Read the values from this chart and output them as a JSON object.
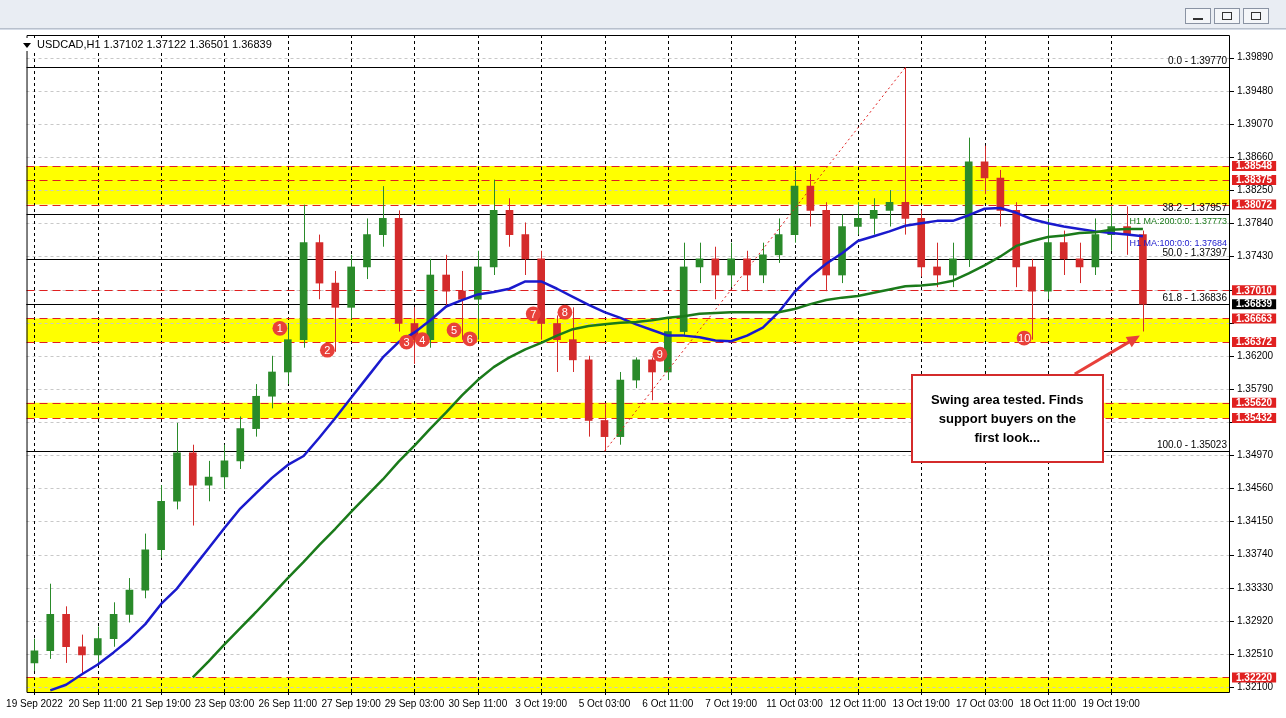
{
  "chart_data": {
    "type": "candlestick",
    "title": "USDCAD,H1  1.37102 1.37122 1.36501 1.36839",
    "categories": [
      "19 Sep 2022",
      null,
      null,
      null,
      "20 Sep 11:00",
      null,
      null,
      null,
      "21 Sep 19:00",
      null,
      null,
      null,
      "23 Sep 03:00",
      null,
      null,
      null,
      "26 Sep 11:00",
      null,
      null,
      null,
      "27 Sep 19:00",
      null,
      null,
      null,
      "29 Sep 03:00",
      null,
      null,
      null,
      "30 Sep 11:00",
      null,
      null,
      null,
      "3 Oct 19:00",
      null,
      null,
      null,
      "5 Oct 03:00",
      null,
      null,
      null,
      "6 Oct 11:00",
      null,
      null,
      null,
      "7 Oct 19:00",
      null,
      null,
      null,
      "11 Oct 03:00",
      null,
      null,
      null,
      "12 Oct 11:00",
      null,
      null,
      null,
      "13 Oct 19:00",
      null,
      null,
      null,
      "17 Oct 03:00",
      null,
      null,
      null,
      "18 Oct 11:00",
      null,
      null,
      null,
      "19 Oct 19:00",
      null,
      null,
      null,
      null,
      null,
      null,
      null
    ],
    "ohlc": [
      [
        1.324,
        1.327,
        1.323,
        1.3255
      ],
      [
        1.3255,
        1.3338,
        1.3245,
        1.33
      ],
      [
        1.33,
        1.331,
        1.324,
        1.326
      ],
      [
        1.326,
        1.3275,
        1.3225,
        1.325
      ],
      [
        1.325,
        1.3285,
        1.324,
        1.327
      ],
      [
        1.327,
        1.3315,
        1.326,
        1.33
      ],
      [
        1.33,
        1.3345,
        1.329,
        1.333
      ],
      [
        1.333,
        1.34,
        1.332,
        1.338
      ],
      [
        1.338,
        1.346,
        1.337,
        1.344
      ],
      [
        1.344,
        1.3537,
        1.343,
        1.35
      ],
      [
        1.35,
        1.351,
        1.341,
        1.346
      ],
      [
        1.346,
        1.349,
        1.344,
        1.347
      ],
      [
        1.347,
        1.351,
        1.3455,
        1.349
      ],
      [
        1.349,
        1.3545,
        1.348,
        1.353
      ],
      [
        1.353,
        1.3585,
        1.352,
        1.357
      ],
      [
        1.357,
        1.362,
        1.3555,
        1.36
      ],
      [
        1.36,
        1.366,
        1.3585,
        1.364
      ],
      [
        1.364,
        1.3807,
        1.363,
        1.376
      ],
      [
        1.376,
        1.377,
        1.369,
        1.371
      ],
      [
        1.371,
        1.3725,
        1.3625,
        1.368
      ],
      [
        1.368,
        1.3745,
        1.3665,
        1.373
      ],
      [
        1.373,
        1.379,
        1.3715,
        1.377
      ],
      [
        1.377,
        1.383,
        1.3755,
        1.379
      ],
      [
        1.379,
        1.38,
        1.365,
        1.366
      ],
      [
        1.366,
        1.368,
        1.361,
        1.364
      ],
      [
        1.364,
        1.374,
        1.363,
        1.372
      ],
      [
        1.372,
        1.3745,
        1.368,
        1.37
      ],
      [
        1.37,
        1.3725,
        1.364,
        1.369
      ],
      [
        1.369,
        1.375,
        1.364,
        1.373
      ],
      [
        1.373,
        1.3838,
        1.372,
        1.38
      ],
      [
        1.38,
        1.3815,
        1.3755,
        1.377
      ],
      [
        1.377,
        1.3785,
        1.372,
        1.374
      ],
      [
        1.374,
        1.375,
        1.364,
        1.366
      ],
      [
        1.366,
        1.367,
        1.36,
        1.364
      ],
      [
        1.364,
        1.368,
        1.36,
        1.3615
      ],
      [
        1.3615,
        1.362,
        1.352,
        1.354
      ],
      [
        1.354,
        1.356,
        1.3502,
        1.352
      ],
      [
        1.352,
        1.36,
        1.351,
        1.359
      ],
      [
        1.359,
        1.3618,
        1.358,
        1.3615
      ],
      [
        1.3615,
        1.3618,
        1.3565,
        1.36
      ],
      [
        1.36,
        1.3665,
        1.359,
        1.365
      ],
      [
        1.365,
        1.376,
        1.3645,
        1.373
      ],
      [
        1.373,
        1.376,
        1.371,
        1.374
      ],
      [
        1.374,
        1.3755,
        1.369,
        1.372
      ],
      [
        1.372,
        1.376,
        1.3705,
        1.374
      ],
      [
        1.374,
        1.375,
        1.37,
        1.372
      ],
      [
        1.372,
        1.376,
        1.371,
        1.3745
      ],
      [
        1.3745,
        1.379,
        1.3735,
        1.377
      ],
      [
        1.377,
        1.3849,
        1.376,
        1.383
      ],
      [
        1.383,
        1.3845,
        1.378,
        1.38
      ],
      [
        1.38,
        1.381,
        1.37,
        1.372
      ],
      [
        1.372,
        1.3795,
        1.371,
        1.378
      ],
      [
        1.378,
        1.381,
        1.377,
        1.379
      ],
      [
        1.379,
        1.3815,
        1.377,
        1.38
      ],
      [
        1.38,
        1.3825,
        1.378,
        1.381
      ],
      [
        1.381,
        1.3977,
        1.377,
        1.379
      ],
      [
        1.379,
        1.38,
        1.3718,
        1.373
      ],
      [
        1.373,
        1.376,
        1.3705,
        1.372
      ],
      [
        1.372,
        1.376,
        1.3705,
        1.374
      ],
      [
        1.374,
        1.389,
        1.373,
        1.386
      ],
      [
        1.386,
        1.388,
        1.382,
        1.384
      ],
      [
        1.384,
        1.385,
        1.378,
        1.38
      ],
      [
        1.38,
        1.381,
        1.3705,
        1.373
      ],
      [
        1.373,
        1.374,
        1.364,
        1.37
      ],
      [
        1.37,
        1.379,
        1.369,
        1.376
      ],
      [
        1.376,
        1.3775,
        1.372,
        1.374
      ],
      [
        1.374,
        1.376,
        1.371,
        1.373
      ],
      [
        1.373,
        1.379,
        1.372,
        1.377
      ],
      [
        1.377,
        1.3805,
        1.375,
        1.378
      ],
      [
        1.378,
        1.3805,
        1.3745,
        1.377
      ],
      [
        1.377,
        1.3775,
        1.36501,
        1.36839
      ],
      null,
      null,
      null,
      null,
      null
    ],
    "colors": [
      "#2a8a2a",
      "#2a8a2a",
      "#d42b2b",
      "#d42b2b",
      "#2a8a2a",
      "#2a8a2a",
      "#2a8a2a",
      "#2a8a2a",
      "#2a8a2a",
      "#2a8a2a",
      "#d42b2b",
      "#2a8a2a",
      "#2a8a2a",
      "#2a8a2a",
      "#2a8a2a",
      "#2a8a2a",
      "#2a8a2a",
      "#2a8a2a",
      "#d42b2b",
      "#d42b2b",
      "#2a8a2a",
      "#2a8a2a",
      "#2a8a2a",
      "#d42b2b",
      "#d42b2b",
      "#2a8a2a",
      "#d42b2b",
      "#d42b2b",
      "#2a8a2a",
      "#2a8a2a",
      "#d42b2b",
      "#d42b2b",
      "#d42b2b",
      "#d42b2b",
      "#d42b2b",
      "#d42b2b",
      "#d42b2b",
      "#2a8a2a",
      "#2a8a2a",
      "#d42b2b",
      "#2a8a2a",
      "#2a8a2a",
      "#2a8a2a",
      "#d42b2b",
      "#2a8a2a",
      "#d42b2b",
      "#2a8a2a",
      "#2a8a2a",
      "#2a8a2a",
      "#d42b2b",
      "#d42b2b",
      "#2a8a2a",
      "#2a8a2a",
      "#2a8a2a",
      "#2a8a2a",
      "#d42b2b",
      "#d42b2b",
      "#d42b2b",
      "#2a8a2a",
      "#2a8a2a",
      "#d42b2b",
      "#d42b2b",
      "#d42b2b",
      "#d42b2b",
      "#2a8a2a",
      "#d42b2b",
      "#d42b2b",
      "#2a8a2a",
      "#2a8a2a",
      "#d42b2b",
      "#d42b2b",
      null,
      null,
      null,
      null,
      null
    ],
    "series": [
      {
        "type": "line",
        "name": "H1 MA:200:0:0: 1.37773",
        "color": "#1a7a1a",
        "values": [
          null,
          null,
          null,
          null,
          null,
          null,
          null,
          null,
          null,
          null,
          1.3222,
          1.3242,
          1.3263,
          1.3283,
          1.3303,
          1.3324,
          1.3345,
          1.3365,
          1.3386,
          1.3406,
          1.3427,
          1.3447,
          1.3467,
          1.3489,
          1.3509,
          1.353,
          1.355,
          1.3571,
          1.359,
          1.3606,
          1.3618,
          1.3628,
          1.3636,
          1.3645,
          1.3653,
          1.3657,
          1.3659,
          1.3661,
          1.3662,
          1.3664,
          1.3667,
          1.3669,
          1.3672,
          1.3673,
          1.3674,
          1.3674,
          1.3674,
          1.3674,
          1.3678,
          1.3684,
          1.3689,
          1.3692,
          1.3694,
          1.3698,
          1.3702,
          1.3706,
          1.3707,
          1.3709,
          1.3713,
          1.3722,
          1.3732,
          1.3743,
          1.3756,
          1.3762,
          1.3767,
          1.3769,
          1.3772,
          1.3773,
          1.3776,
          1.3777,
          1.3777,
          null,
          null,
          null,
          null,
          null
        ]
      },
      {
        "type": "line",
        "name": "H1 MA:100:0:0: 1.37684",
        "color": "#1a1acd",
        "values": [
          null,
          1.3206,
          1.3213,
          1.3226,
          1.3238,
          1.3253,
          1.3269,
          1.3288,
          1.3313,
          1.3332,
          1.3357,
          1.3382,
          1.3407,
          1.3431,
          1.345,
          1.3469,
          1.3485,
          1.3496,
          1.3519,
          1.3543,
          1.3568,
          1.3593,
          1.3618,
          1.3637,
          1.3649,
          1.3664,
          1.3681,
          1.3689,
          1.3696,
          1.3699,
          1.3703,
          1.3712,
          1.3712,
          1.3703,
          1.3693,
          1.3683,
          1.3674,
          1.3667,
          1.3659,
          1.3652,
          1.3645,
          1.3645,
          1.3643,
          1.3639,
          1.3638,
          1.3645,
          1.3655,
          1.3674,
          1.3699,
          1.3718,
          1.3734,
          1.3747,
          1.3762,
          1.3768,
          1.3774,
          1.3781,
          1.3784,
          1.3787,
          1.3787,
          1.3794,
          1.3802,
          1.3803,
          1.3797,
          1.3789,
          1.3784,
          1.378,
          1.3777,
          1.3774,
          1.3772,
          1.377,
          1.3768,
          null,
          null,
          null,
          null,
          null
        ]
      },
      {
        "type": "line",
        "color": "#e02020",
        "line_style": "dotted",
        "values": [
          null,
          null,
          null,
          null,
          null,
          null,
          null,
          null,
          null,
          null,
          null,
          null,
          null,
          null,
          null,
          null,
          null,
          null,
          null,
          null,
          null,
          null,
          null,
          null,
          null,
          null,
          null,
          null,
          null,
          null,
          null,
          null,
          null,
          null,
          null,
          null,
          1.3502,
          null,
          null,
          null,
          null,
          null,
          null,
          null,
          null,
          null,
          null,
          null,
          null,
          null,
          null,
          null,
          null,
          null,
          null,
          1.3977,
          null,
          null,
          null,
          null,
          null,
          null,
          null,
          null,
          null,
          null,
          null,
          null,
          null,
          null,
          null,
          null,
          null,
          null,
          null,
          null
        ]
      }
    ],
    "ylim": [
      1.3204,
      1.4017
    ],
    "yticks": [
      {
        "value": 1.321,
        "label": "1.32100"
      },
      {
        "value": 1.3251,
        "label": "1.32510"
      },
      {
        "value": 1.3292,
        "label": "1.32920"
      },
      {
        "value": 1.3333,
        "label": "1.33330"
      },
      {
        "value": 1.3374,
        "label": "1.33740"
      },
      {
        "value": 1.3415,
        "label": "1.34150"
      },
      {
        "value": 1.3456,
        "label": "1.34560"
      },
      {
        "value": 1.3497,
        "label": "1.34970"
      },
      {
        "value": 1.3538,
        "label": null
      },
      {
        "value": 1.3579,
        "label": "1.35790"
      },
      {
        "value": 1.362,
        "label": "1.36200"
      },
      {
        "value": 1.3661,
        "label": null
      },
      {
        "value": 1.3702,
        "label": null
      },
      {
        "value": 1.3743,
        "label": "1.37430"
      },
      {
        "value": 1.3784,
        "label": "1.37840"
      },
      {
        "value": 1.3825,
        "label": "1.38250"
      },
      {
        "value": 1.3866,
        "label": "1.38660"
      },
      {
        "value": 1.3907,
        "label": "1.39070"
      },
      {
        "value": 1.3948,
        "label": "1.39480"
      },
      {
        "value": 1.3989,
        "label": "1.39890"
      }
    ],
    "grid": true,
    "bands": [
      {
        "axis": "y",
        "from": 1.38072,
        "to": 1.38548,
        "color": "#ffff00"
      },
      {
        "axis": "y",
        "from": 1.36372,
        "to": 1.36663,
        "color": "#ffff00"
      },
      {
        "axis": "y",
        "from": 1.35432,
        "to": 1.3562,
        "color": "#ffff00"
      },
      {
        "axis": "y",
        "from": 1.3204,
        "to": 1.3222,
        "color": "#ffff00"
      }
    ],
    "ref_lines": [
      {
        "axis": "y",
        "value": 1.38548,
        "label": "1.38548",
        "color": "#e02020",
        "line_style": "dashed"
      },
      {
        "axis": "y",
        "value": 1.38375,
        "label": "1.38375",
        "color": "#e02020",
        "line_style": "dashed"
      },
      {
        "axis": "y",
        "value": 1.38072,
        "label": "1.38072",
        "color": "#e02020",
        "line_style": "dashed"
      },
      {
        "axis": "y",
        "value": 1.3701,
        "label": "1.37010",
        "color": "#e02020",
        "line_style": "dashed"
      },
      {
        "axis": "y",
        "value": 1.36663,
        "label": "1.36663",
        "color": "#e02020",
        "line_style": "dashed"
      },
      {
        "axis": "y",
        "value": 1.36372,
        "label": "1.36372",
        "color": "#e02020",
        "line_style": "dashed"
      },
      {
        "axis": "y",
        "value": 1.3562,
        "label": "1.35620",
        "color": "#e02020",
        "line_style": "dashed"
      },
      {
        "axis": "y",
        "value": 1.35432,
        "label": "1.35432",
        "color": "#e02020",
        "line_style": "dashed"
      },
      {
        "axis": "y",
        "value": 1.3222,
        "label": "1.32220",
        "color": "#e02020",
        "line_style": "dashed"
      },
      {
        "axis": "y",
        "value": 1.36839,
        "label": "1.36839",
        "color": "#000000",
        "line_style": "dotted"
      },
      {
        "axis": "y",
        "value": 1.3977,
        "color": "#000000",
        "line_style": "solid"
      },
      {
        "axis": "y",
        "value": 1.37957,
        "color": "#000000",
        "line_style": "solid"
      },
      {
        "axis": "y",
        "value": 1.37397,
        "color": "#000000",
        "line_style": "solid"
      },
      {
        "axis": "y",
        "value": 1.36836,
        "color": "#000000",
        "line_style": "solid"
      },
      {
        "axis": "y",
        "value": 1.35023,
        "color": "#000000",
        "line_style": "solid"
      }
    ],
    "annotations": [
      {
        "text": "0.0 - 1.39770",
        "y": 1.3977
      },
      {
        "text": "38.2 - 1.37957",
        "y": 1.37957
      },
      {
        "text": "50.0 - 1.37397",
        "y": 1.37397
      },
      {
        "text": "61.8 - 1.36836",
        "y": 1.36836
      },
      {
        "text": "100.0 - 1.35023",
        "y": 1.35023
      },
      {
        "text": "1",
        "y": 1.3654
      },
      {
        "text": "2",
        "y": 1.3627
      },
      {
        "text": "3",
        "y": 1.3637
      },
      {
        "text": "4",
        "y": 1.364
      },
      {
        "text": "5",
        "y": 1.3652
      },
      {
        "text": "6",
        "y": 1.3641
      },
      {
        "text": "7",
        "y": 1.3672
      },
      {
        "text": "8",
        "y": 1.3674
      },
      {
        "text": "9",
        "y": 1.3622
      },
      {
        "text": "10",
        "y": 1.3642
      },
      "Swing area tested. Finds support buyers on the first look..."
    ]
  }
}
